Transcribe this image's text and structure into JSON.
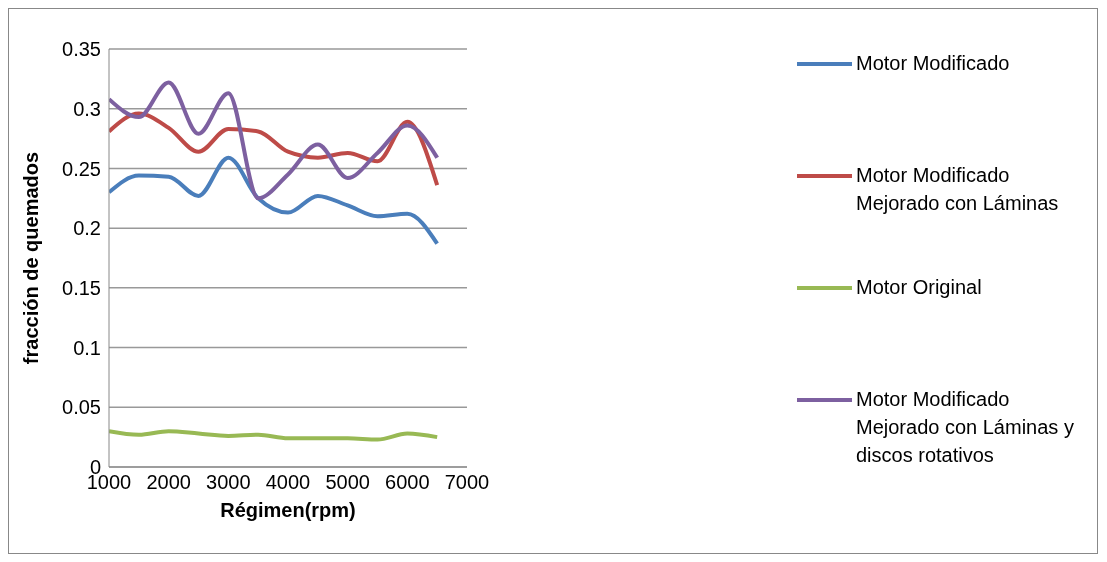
{
  "chart_data": {
    "type": "line",
    "xlabel": "Régimen(rpm)",
    "ylabel": "fracción de quemados",
    "x": [
      1000,
      1500,
      2000,
      2500,
      3000,
      3500,
      4000,
      4500,
      5000,
      5500,
      6000,
      6500
    ],
    "series": [
      {
        "name": "Motor Modificado",
        "color": "#4a7ebb",
        "values": [
          0.23,
          0.244,
          0.243,
          0.227,
          0.259,
          0.225,
          0.213,
          0.227,
          0.219,
          0.21,
          0.212,
          0.187
        ]
      },
      {
        "name": "Motor Modificado Mejorado con Láminas",
        "color": "#be4b48",
        "values": [
          0.281,
          0.296,
          0.284,
          0.264,
          0.283,
          0.281,
          0.264,
          0.259,
          0.263,
          0.256,
          0.289,
          0.236
        ]
      },
      {
        "name": "Motor Original",
        "color": "#98b954",
        "values": [
          0.03,
          0.027,
          0.03,
          0.028,
          0.026,
          0.027,
          0.024,
          0.024,
          0.024,
          0.023,
          0.028,
          0.025
        ]
      },
      {
        "name": "Motor Modificado Mejorado con Láminas y discos rotativos",
        "color": "#7d60a0",
        "values": [
          0.308,
          0.293,
          0.322,
          0.279,
          0.313,
          0.225,
          0.245,
          0.27,
          0.242,
          0.263,
          0.286,
          0.259
        ]
      }
    ],
    "xlim": [
      1000,
      7000
    ],
    "xticks": [
      1000,
      2000,
      3000,
      4000,
      5000,
      6000,
      7000
    ],
    "ylim": [
      0,
      0.35
    ],
    "yticks": [
      0,
      0.05,
      0.1,
      0.15,
      0.2,
      0.25,
      0.3,
      0.35
    ],
    "grid": "y",
    "legend": "right",
    "marker": "none",
    "line_style": "solid"
  }
}
